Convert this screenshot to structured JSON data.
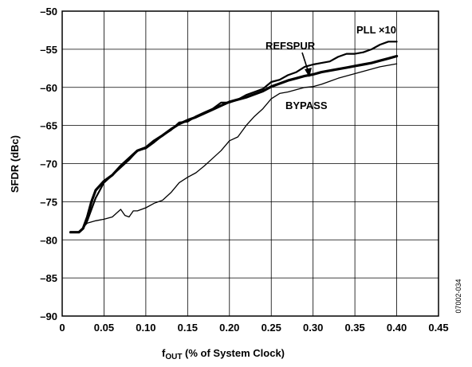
{
  "chart_data": {
    "type": "line",
    "xlabel": "f",
    "xlabel_sub": "OUT",
    "xlabel_rest": " (% of System Clock)",
    "ylabel": "SFDR (dBc)",
    "xlim": [
      0,
      0.45
    ],
    "ylim": [
      -90,
      -50
    ],
    "x_ticks": [
      0,
      0.05,
      0.1,
      0.15,
      0.2,
      0.25,
      0.3,
      0.35,
      0.4,
      0.45
    ],
    "x_tick_labels": [
      "0",
      "0.05",
      "0.10",
      "0.15",
      "0.20",
      "0.25",
      "0.30",
      "0.35",
      "0.40",
      "0.45"
    ],
    "y_ticks": [
      -90,
      -85,
      -80,
      -75,
      -70,
      -65,
      -60,
      -55,
      -50
    ],
    "y_tick_labels": [
      "–90",
      "–85",
      "–80",
      "–75",
      "–70",
      "–65",
      "–60",
      "–55",
      "–50"
    ],
    "grid": true,
    "figure_id": "07002-034",
    "series": [
      {
        "name": "PLL ×10",
        "stroke": 2.2,
        "x": [
          0.01,
          0.02,
          0.025,
          0.03,
          0.035,
          0.04,
          0.05,
          0.06,
          0.07,
          0.08,
          0.09,
          0.1,
          0.11,
          0.12,
          0.13,
          0.14,
          0.15,
          0.16,
          0.17,
          0.18,
          0.19,
          0.2,
          0.21,
          0.22,
          0.23,
          0.24,
          0.25,
          0.26,
          0.27,
          0.28,
          0.29,
          0.3,
          0.31,
          0.32,
          0.33,
          0.34,
          0.35,
          0.36,
          0.37,
          0.38,
          0.39,
          0.4
        ],
        "y": [
          -79,
          -79,
          -78.5,
          -77.5,
          -76,
          -74.5,
          -72.5,
          -71.5,
          -70.5,
          -69.5,
          -68.3,
          -68,
          -67.2,
          -66.3,
          -65.6,
          -64.6,
          -64.5,
          -63.8,
          -63.3,
          -62.8,
          -62.0,
          -62.0,
          -61.6,
          -61.0,
          -60.6,
          -60.2,
          -59.3,
          -59.0,
          -58.4,
          -58.0,
          -57.3,
          -57.0,
          -56.8,
          -56.6,
          -56.0,
          -55.6,
          -55.6,
          -55.4,
          -55.0,
          -54.4,
          -54.0,
          -54.0
        ]
      },
      {
        "name": "REFSPUR",
        "stroke": 3.2,
        "x": [
          0.01,
          0.02,
          0.025,
          0.03,
          0.035,
          0.04,
          0.05,
          0.06,
          0.07,
          0.08,
          0.09,
          0.1,
          0.11,
          0.12,
          0.13,
          0.14,
          0.15,
          0.16,
          0.17,
          0.18,
          0.19,
          0.2,
          0.21,
          0.22,
          0.23,
          0.24,
          0.25,
          0.26,
          0.27,
          0.28,
          0.29,
          0.3,
          0.31,
          0.32,
          0.33,
          0.34,
          0.35,
          0.36,
          0.37,
          0.38,
          0.39,
          0.4
        ],
        "y": [
          -79,
          -79,
          -78.5,
          -77.0,
          -75.0,
          -73.5,
          -72.3,
          -71.5,
          -70.3,
          -69.3,
          -68.3,
          -67.9,
          -67.0,
          -66.3,
          -65.5,
          -64.8,
          -64.3,
          -63.9,
          -63.4,
          -62.9,
          -62.4,
          -61.9,
          -61.6,
          -61.3,
          -60.9,
          -60.5,
          -59.9,
          -59.5,
          -59.1,
          -58.8,
          -58.5,
          -58.3,
          -58.0,
          -57.8,
          -57.6,
          -57.4,
          -57.2,
          -57.0,
          -56.8,
          -56.5,
          -56.2,
          -55.9
        ]
      },
      {
        "name": "BYPASS",
        "stroke": 1.3,
        "x": [
          0.01,
          0.02,
          0.03,
          0.04,
          0.05,
          0.06,
          0.07,
          0.075,
          0.08,
          0.085,
          0.09,
          0.1,
          0.11,
          0.12,
          0.13,
          0.14,
          0.15,
          0.16,
          0.17,
          0.18,
          0.19,
          0.2,
          0.21,
          0.22,
          0.23,
          0.24,
          0.25,
          0.26,
          0.27,
          0.28,
          0.29,
          0.3,
          0.31,
          0.32,
          0.33,
          0.34,
          0.35,
          0.36,
          0.37,
          0.38,
          0.39,
          0.4
        ],
        "y": [
          -79,
          -79,
          -77.8,
          -77.5,
          -77.3,
          -77.0,
          -76.0,
          -76.8,
          -77.0,
          -76.2,
          -76.2,
          -75.8,
          -75.2,
          -74.8,
          -73.8,
          -72.5,
          -71.8,
          -71.2,
          -70.3,
          -69.3,
          -68.3,
          -67.0,
          -66.5,
          -65.0,
          -63.8,
          -62.8,
          -61.5,
          -60.8,
          -60.6,
          -60.3,
          -60.0,
          -59.9,
          -59.6,
          -59.2,
          -58.8,
          -58.5,
          -58.2,
          -57.9,
          -57.6,
          -57.3,
          -57.1,
          -56.9
        ]
      }
    ]
  }
}
